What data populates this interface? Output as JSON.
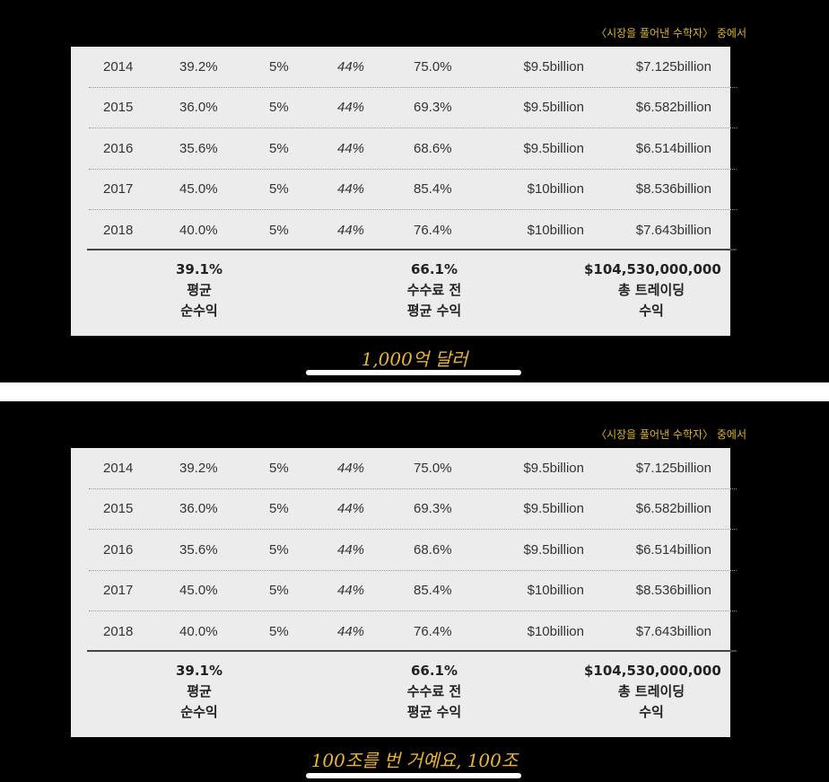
{
  "source_note": "〈시장을 풀어낸 수학자〉 중에서",
  "rows": [
    {
      "year": "2014",
      "a": "39.2%",
      "b": "5%",
      "c": "44%",
      "d": "75.0%",
      "e": "$9.5billion",
      "f": "$7.125billion"
    },
    {
      "year": "2015",
      "a": "36.0%",
      "b": "5%",
      "c": "44%",
      "d": "69.3%",
      "e": "$9.5billion",
      "f": "$6.582billion"
    },
    {
      "year": "2016",
      "a": "35.6%",
      "b": "5%",
      "c": "44%",
      "d": "68.6%",
      "e": "$9.5billion",
      "f": "$6.514billion"
    },
    {
      "year": "2017",
      "a": "45.0%",
      "b": "5%",
      "c": "44%",
      "d": "85.4%",
      "e": "$10billion",
      "f": "$8.536billion"
    },
    {
      "year": "2018",
      "a": "40.0%",
      "b": "5%",
      "c": "44%",
      "d": "76.4%",
      "e": "$10billion",
      "f": "$7.643billion"
    }
  ],
  "summary": {
    "avg_net": {
      "value": "39.1%",
      "line1": "평균",
      "line2": "순수익"
    },
    "avg_pre_fee": {
      "value": "66.1%",
      "line1": "수수료 전",
      "line2": "평균 수익"
    },
    "total_trading": {
      "value": "$104,530,000,000",
      "line1": "총 트레이딩",
      "line2": "수익"
    }
  },
  "frames": [
    {
      "caption": "1,000억 달러"
    },
    {
      "caption": "100조를 번 거예요, 100조"
    }
  ]
}
